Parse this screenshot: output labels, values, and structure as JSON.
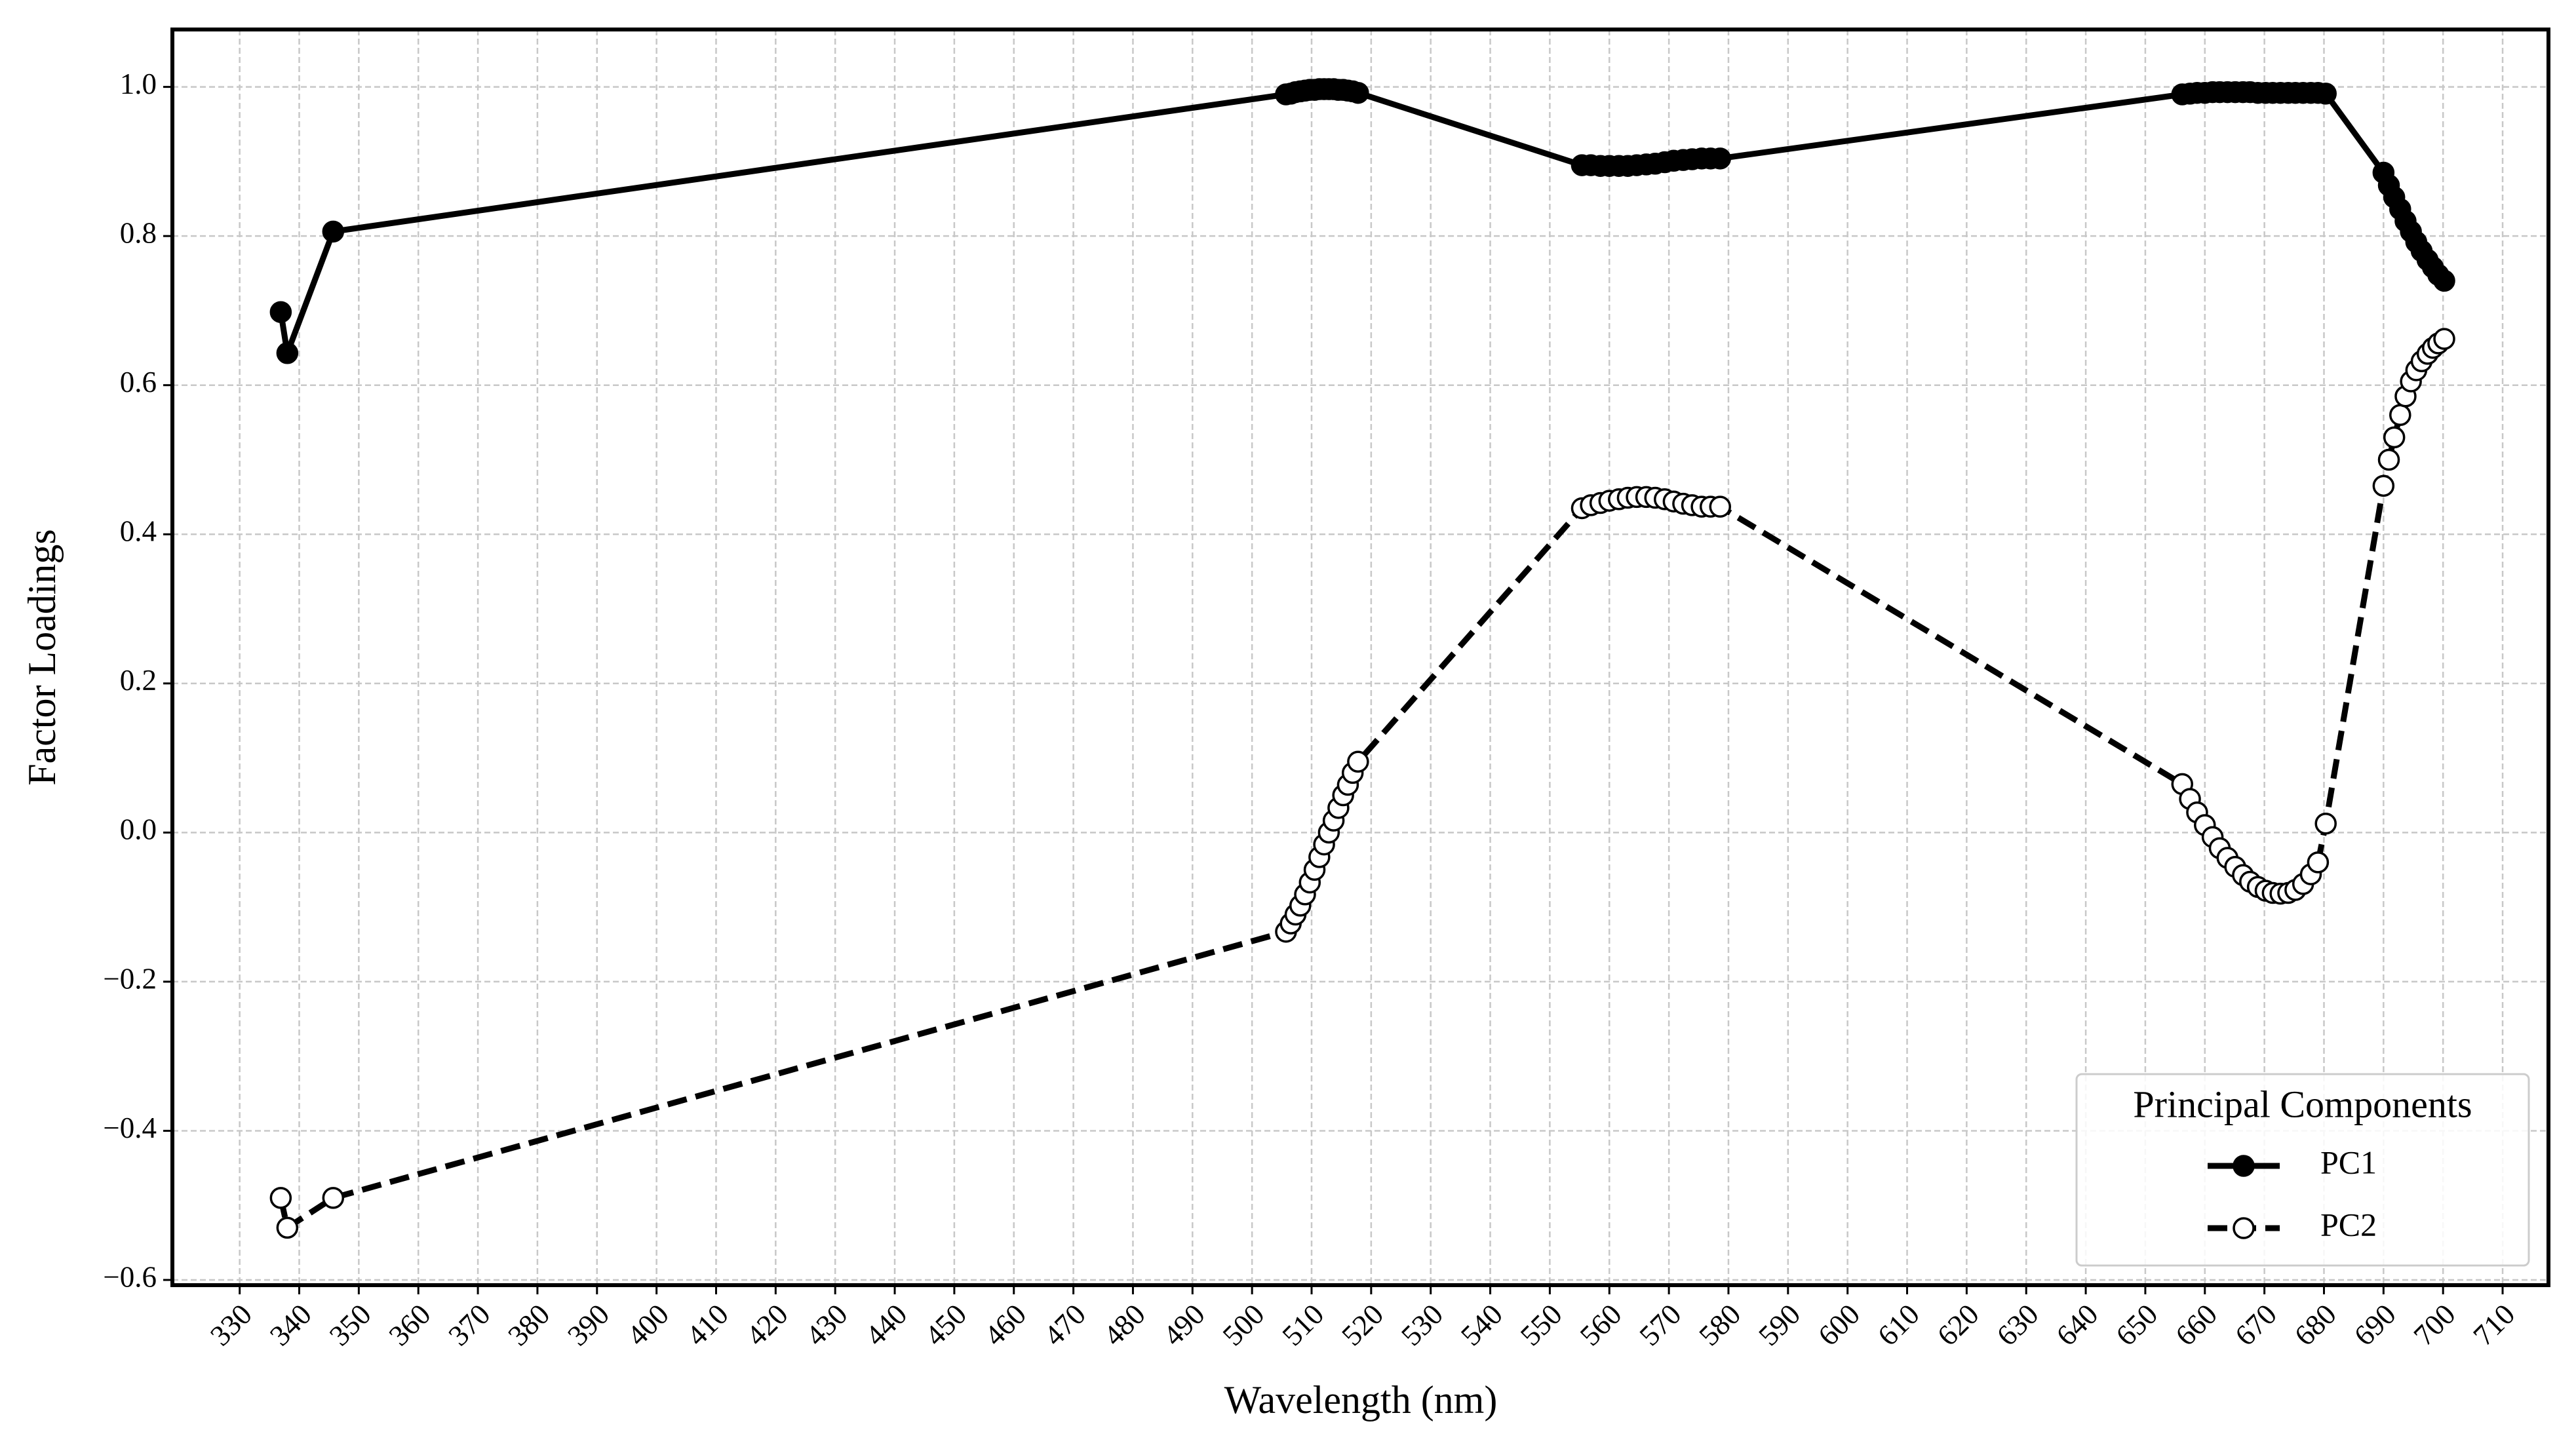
{
  "chart_data": {
    "type": "line",
    "xlabel": "Wavelength (nm)",
    "ylabel": "Factor Loadings",
    "x": [
      336.9,
      338.0,
      345.7,
      505.7,
      506.5,
      507.3,
      508.1,
      508.9,
      509.7,
      510.5,
      511.3,
      512.1,
      512.9,
      513.7,
      514.5,
      515.3,
      516.1,
      516.9,
      517.8,
      555.4,
      556.9,
      558.5,
      560.0,
      561.6,
      563.1,
      564.6,
      566.2,
      567.7,
      569.3,
      570.8,
      572.4,
      573.9,
      575.5,
      577.0,
      578.6,
      656.2,
      657.5,
      658.7,
      660.0,
      661.3,
      662.5,
      663.8,
      665.1,
      666.4,
      667.6,
      668.9,
      670.2,
      671.4,
      672.7,
      674.0,
      675.2,
      676.5,
      677.8,
      679.0,
      680.3,
      690.0,
      690.9,
      691.8,
      692.8,
      693.7,
      694.6,
      695.5,
      696.4,
      697.4,
      698.3,
      699.2,
      700.2
    ],
    "series": [
      {
        "name": "PC1",
        "color": "#000000",
        "marker": "filled",
        "linestyle": "solid",
        "values": [
          0.698,
          0.643,
          0.806,
          0.99,
          0.991,
          0.993,
          0.994,
          0.995,
          0.996,
          0.996,
          0.997,
          0.997,
          0.997,
          0.997,
          0.996,
          0.996,
          0.995,
          0.994,
          0.992,
          0.895,
          0.895,
          0.894,
          0.894,
          0.894,
          0.894,
          0.895,
          0.896,
          0.897,
          0.899,
          0.901,
          0.902,
          0.903,
          0.904,
          0.904,
          0.904,
          0.99,
          0.991,
          0.992,
          0.992,
          0.993,
          0.993,
          0.993,
          0.993,
          0.993,
          0.993,
          0.992,
          0.992,
          0.992,
          0.992,
          0.992,
          0.992,
          0.992,
          0.992,
          0.992,
          0.991,
          0.885,
          0.868,
          0.852,
          0.836,
          0.82,
          0.806,
          0.792,
          0.78,
          0.768,
          0.758,
          0.748,
          0.74
        ]
      },
      {
        "name": "PC2",
        "color": "#000000",
        "marker": "open",
        "linestyle": "dashed",
        "values": [
          -0.49,
          -0.53,
          -0.49,
          -0.133,
          -0.122,
          -0.11,
          -0.098,
          -0.083,
          -0.067,
          -0.05,
          -0.033,
          -0.016,
          0.0,
          0.016,
          0.033,
          0.05,
          0.064,
          0.08,
          0.095,
          0.435,
          0.439,
          0.442,
          0.445,
          0.447,
          0.449,
          0.45,
          0.45,
          0.449,
          0.447,
          0.444,
          0.441,
          0.439,
          0.437,
          0.437,
          0.437,
          0.065,
          0.045,
          0.027,
          0.01,
          -0.006,
          -0.021,
          -0.034,
          -0.046,
          -0.057,
          -0.066,
          -0.073,
          -0.078,
          -0.081,
          -0.082,
          -0.081,
          -0.077,
          -0.069,
          -0.056,
          -0.04,
          0.012,
          0.465,
          0.5,
          0.53,
          0.56,
          0.585,
          0.605,
          0.62,
          0.632,
          0.642,
          0.65,
          0.656,
          0.662
        ]
      }
    ],
    "xlim": [
      318.7,
      717.7
    ],
    "xticks": [
      330,
      340,
      350,
      360,
      370,
      380,
      390,
      400,
      410,
      420,
      430,
      440,
      450,
      460,
      470,
      480,
      490,
      500,
      510,
      520,
      530,
      540,
      550,
      560,
      570,
      580,
      590,
      600,
      610,
      620,
      630,
      640,
      650,
      660,
      670,
      680,
      690,
      700,
      710
    ],
    "ylim": [
      -0.607,
      1.077
    ],
    "yticks": [
      {
        "value": -0.6,
        "label": "−0.6"
      },
      {
        "value": -0.4,
        "label": "−0.4"
      },
      {
        "value": -0.2,
        "label": "−0.2"
      },
      {
        "value": 0,
        "label": "0.0"
      },
      {
        "value": 0.2,
        "label": "0.2"
      },
      {
        "value": 0.4,
        "label": "0.4"
      },
      {
        "value": 0.6,
        "label": "0.6"
      },
      {
        "value": 0.8,
        "label": "0.8"
      },
      {
        "value": 1,
        "label": "1.0"
      }
    ],
    "grid": true,
    "legend": "lower right",
    "legend_title": "Principal Components"
  }
}
